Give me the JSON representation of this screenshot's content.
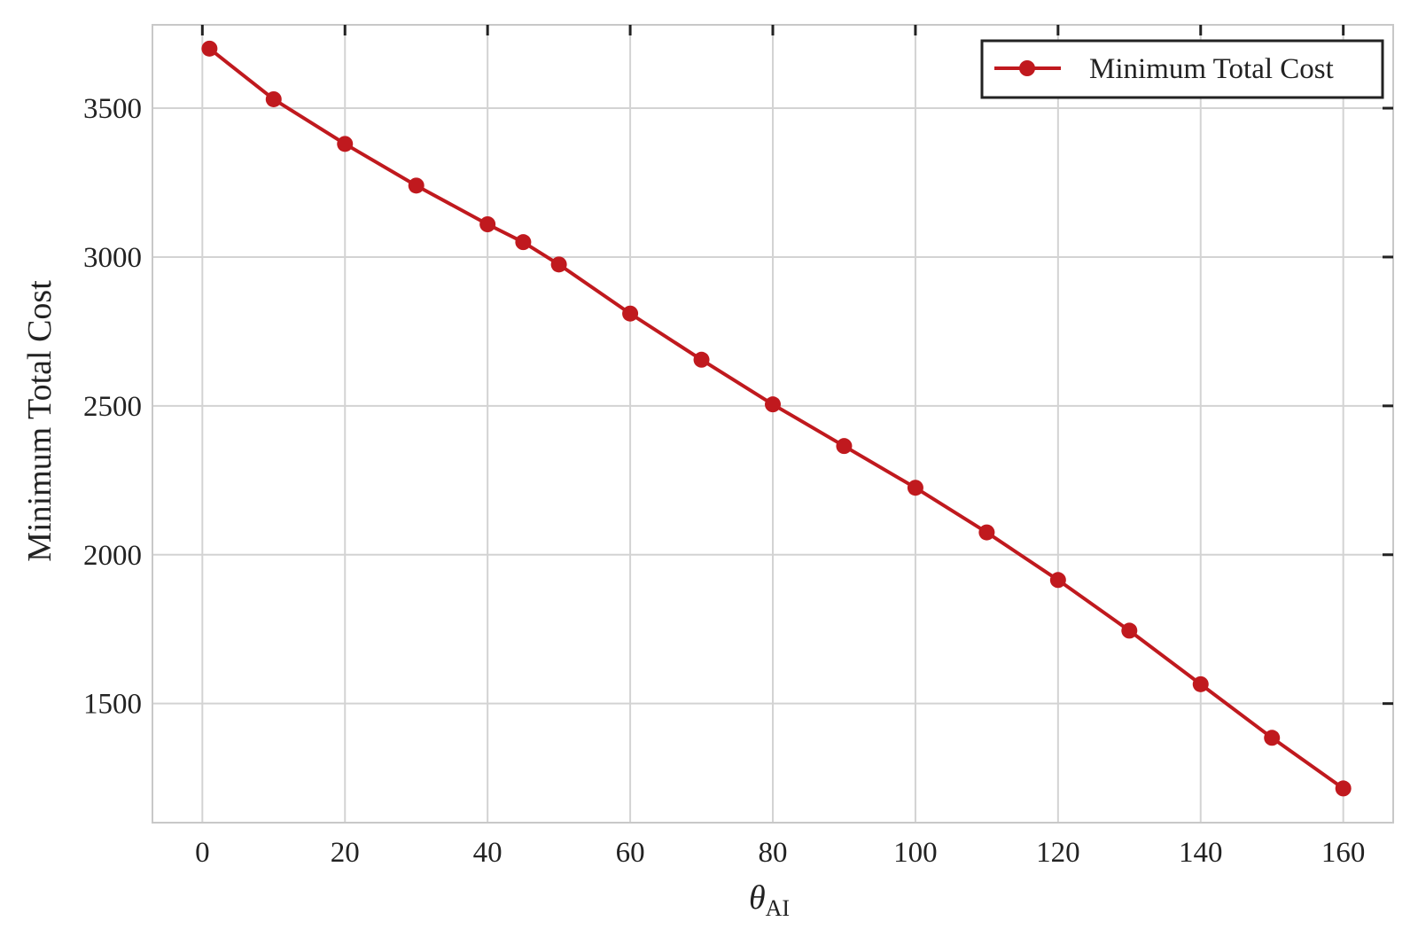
{
  "chart_data": {
    "type": "line",
    "title": "",
    "xlabel": "θ",
    "xlabel_sub": "AI",
    "ylabel": "Minimum Total Cost",
    "xlim": [
      -7,
      167
    ],
    "ylim": [
      1100,
      3780
    ],
    "xticks": [
      0,
      20,
      40,
      60,
      80,
      100,
      120,
      140,
      160
    ],
    "yticks": [
      1500,
      2000,
      2500,
      3000,
      3500
    ],
    "xtick_labels": [
      "0",
      "20",
      "40",
      "60",
      "80",
      "100",
      "120",
      "140",
      "160"
    ],
    "ytick_labels": [
      "1500",
      "2000",
      "2500",
      "3000",
      "3500"
    ],
    "grid": true,
    "legend_position": "top-right",
    "series": [
      {
        "name": "Minimum Total Cost",
        "color": "#c0191e",
        "marker": "circle",
        "x": [
          1,
          10,
          20,
          30,
          40,
          45,
          50,
          60,
          70,
          80,
          90,
          100,
          110,
          120,
          130,
          140,
          150,
          160
        ],
        "y": [
          3700,
          3530,
          3380,
          3240,
          3110,
          3050,
          2975,
          2810,
          2655,
          2505,
          2365,
          2225,
          2075,
          1915,
          1745,
          1565,
          1385,
          1215
        ]
      }
    ]
  }
}
